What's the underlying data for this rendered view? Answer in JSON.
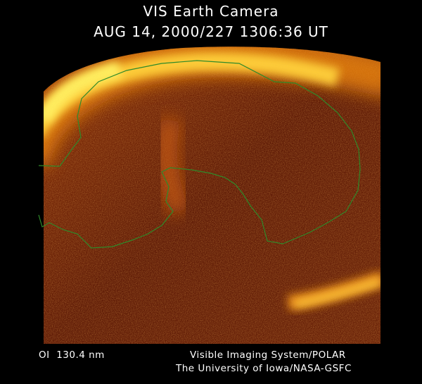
{
  "header": {
    "title": "VIS Earth Camera",
    "timestamp": "AUG 14, 2000/227 1306:36 UT"
  },
  "footer": {
    "wavelength": "OI  130.4 nm",
    "instrument": "Visible Imaging System/POLAR",
    "credit": "The University of Iowa/NASA-GSFC"
  }
}
